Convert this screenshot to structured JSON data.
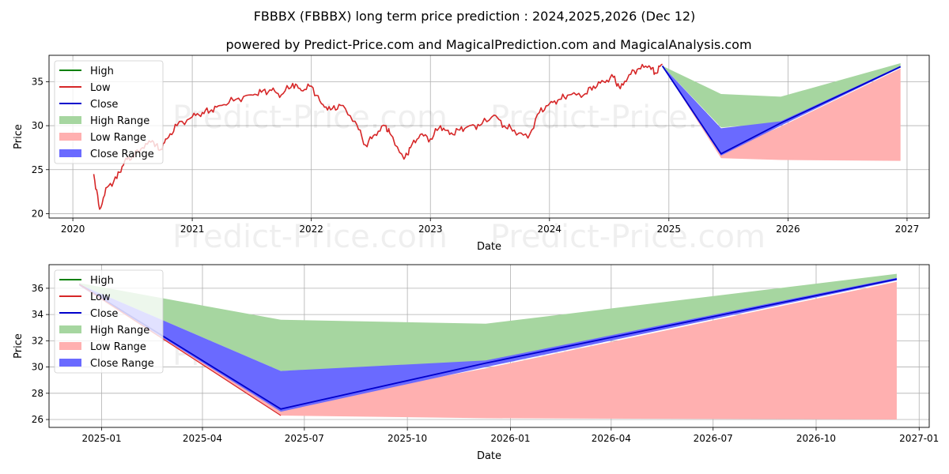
{
  "title": "FBBBX (FBBBX) long term price prediction : 2024,2025,2026 (Dec 12)",
  "subtitle": "powered by Predict-Price.com and MagicalPrediction.com and MagicalAnalysis.com",
  "watermark": "Predict-Price.com",
  "legend": {
    "high": "High",
    "low": "Low",
    "close": "Close",
    "high_range": "High Range",
    "low_range": "Low Range",
    "close_range": "Close Range"
  },
  "colors": {
    "high": "#008000",
    "low": "#d62728",
    "close": "#0000cc",
    "high_range": "#a6d6a0",
    "low_range": "#ffb0b0",
    "close_range": "#6a6aff"
  },
  "chart_data": [
    {
      "type": "line",
      "xlabel": "Date",
      "ylabel": "Price",
      "x_ticks": [
        "2020",
        "2021",
        "2022",
        "2023",
        "2024",
        "2025",
        "2026",
        "2027"
      ],
      "y_ticks": [
        "20",
        "25",
        "30",
        "35"
      ],
      "xlim": [
        "2019-10-20",
        "2027-03-10"
      ],
      "ylim": [
        19.5,
        38.0
      ],
      "grid": true,
      "legend_position": "upper-left",
      "history": {
        "name": "Low",
        "x": [
          "2020-03-05",
          "2020-03-23",
          "2020-04-15",
          "2020-05-15",
          "2020-06-08",
          "2020-07-01",
          "2020-08-01",
          "2020-09-01",
          "2020-09-23",
          "2020-10-15",
          "2020-11-15",
          "2021-01-01",
          "2021-02-01",
          "2021-03-01",
          "2021-04-01",
          "2021-05-15",
          "2021-07-01",
          "2021-08-01",
          "2021-09-01",
          "2021-10-01",
          "2021-11-05",
          "2021-12-01",
          "2022-01-01",
          "2022-02-01",
          "2022-03-01",
          "2022-04-01",
          "2022-05-15",
          "2022-06-16",
          "2022-07-15",
          "2022-08-15",
          "2022-09-01",
          "2022-10-12",
          "2022-11-01",
          "2022-12-01",
          "2023-01-01",
          "2023-02-01",
          "2023-03-01",
          "2023-04-01",
          "2023-05-01",
          "2023-06-01",
          "2023-07-15",
          "2023-08-15",
          "2023-09-15",
          "2023-10-27",
          "2023-12-01",
          "2024-01-01",
          "2024-02-01",
          "2024-03-01",
          "2024-04-15",
          "2024-05-15",
          "2024-06-15",
          "2024-07-15",
          "2024-08-05",
          "2024-09-01",
          "2024-10-01",
          "2024-11-01",
          "2024-11-20",
          "2024-12-12"
        ],
        "y": [
          24.5,
          20.5,
          23.0,
          24.0,
          26.0,
          26.5,
          27.5,
          28.3,
          27.2,
          28.5,
          30.0,
          31.0,
          31.5,
          31.8,
          32.3,
          33.0,
          33.5,
          33.8,
          34.0,
          33.5,
          34.8,
          34.0,
          34.5,
          32.5,
          31.8,
          32.3,
          30.5,
          27.8,
          29.0,
          30.0,
          29.0,
          26.2,
          27.5,
          29.0,
          28.5,
          30.0,
          29.0,
          29.5,
          30.0,
          30.0,
          31.2,
          30.0,
          29.5,
          28.6,
          31.5,
          32.5,
          33.0,
          33.5,
          33.5,
          34.5,
          35.0,
          35.5,
          34.2,
          35.8,
          36.5,
          36.8,
          36.0,
          37.0
        ]
      },
      "forecast": {
        "x": [
          "2024-12-12",
          "2025-06-10",
          "2025-12-10",
          "2026-12-12"
        ],
        "close": [
          36.8,
          26.8,
          30.3,
          36.7
        ],
        "high_range": {
          "upper": [
            36.8,
            33.6,
            33.3,
            37.1
          ],
          "lower": [
            36.8,
            29.8,
            30.3,
            36.8
          ]
        },
        "low_range": {
          "upper": [
            36.8,
            27.0,
            29.9,
            36.5
          ],
          "lower": [
            36.8,
            26.3,
            26.1,
            26.0
          ]
        },
        "close_range": {
          "upper": [
            36.8,
            29.7,
            30.5,
            36.8
          ],
          "lower": [
            36.8,
            26.6,
            30.0,
            36.6
          ]
        }
      }
    },
    {
      "type": "line",
      "xlabel": "Date",
      "ylabel": "Price",
      "x_ticks": [
        "2025-01",
        "2025-04",
        "2025-07",
        "2025-10",
        "2026-01",
        "2026-04",
        "2026-07",
        "2026-10",
        "2027-01"
      ],
      "y_ticks": [
        "26",
        "28",
        "30",
        "32",
        "34",
        "36"
      ],
      "xlim": [
        "2024-11-15",
        "2027-01-10"
      ],
      "ylim": [
        25.4,
        37.8
      ],
      "grid": true,
      "legend_position": "upper-left",
      "forecast": {
        "x": [
          "2024-12-12",
          "2025-06-10",
          "2025-12-10",
          "2026-12-12"
        ],
        "close": [
          36.3,
          26.8,
          30.3,
          36.7
        ],
        "high_range": {
          "upper": [
            36.4,
            33.6,
            33.3,
            37.1
          ],
          "lower": [
            36.3,
            29.7,
            30.3,
            36.8
          ]
        },
        "low_range": {
          "upper": [
            36.2,
            27.0,
            29.9,
            36.5
          ],
          "lower": [
            36.2,
            26.3,
            26.1,
            26.0
          ]
        },
        "close_range": {
          "upper": [
            36.3,
            29.7,
            30.5,
            36.8
          ],
          "lower": [
            36.2,
            26.6,
            30.0,
            36.6
          ]
        }
      }
    }
  ]
}
